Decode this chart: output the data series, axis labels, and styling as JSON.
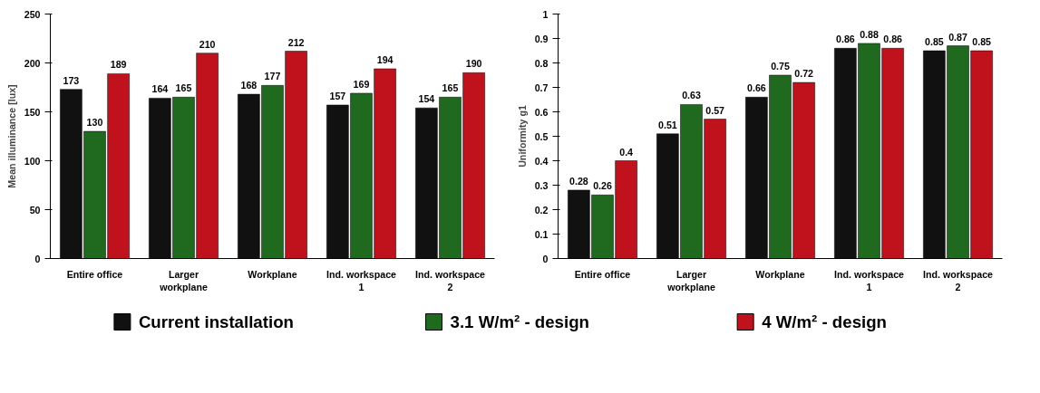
{
  "chart_data": [
    {
      "type": "bar",
      "ylabel": "Mean illuminance [lux]",
      "categories": [
        "Entire office",
        "Larger\nworkplane",
        "Workplane",
        "Ind. workspace\n1",
        "Ind. workspace\n2"
      ],
      "series": [
        {
          "name": "Current installation",
          "color": "#111111",
          "values": [
            173,
            164,
            168,
            157,
            154
          ]
        },
        {
          "name": "3.1 W/m² - design",
          "color": "#1f6a1f",
          "values": [
            130,
            165,
            177,
            169,
            165
          ]
        },
        {
          "name": "4 W/m² - design",
          "color": "#c0121c",
          "values": [
            189,
            210,
            212,
            194,
            190
          ]
        }
      ],
      "ylim": [
        0,
        250
      ],
      "yticks": [
        0,
        50,
        100,
        150,
        200,
        250
      ],
      "data_labels": true,
      "grid": false,
      "legend": "bottom"
    },
    {
      "type": "bar",
      "ylabel": "Uniformity g1",
      "categories": [
        "Entire office",
        "Larger\nworkplane",
        "Workplane",
        "Ind. workspace\n1",
        "Ind. workspace\n2"
      ],
      "series": [
        {
          "color": "#111111",
          "values": [
            0.28,
            0.51,
            0.66,
            0.86,
            0.85
          ]
        },
        {
          "color": "#1f6a1f",
          "values": [
            0.26,
            0.63,
            0.75,
            0.88,
            0.87
          ]
        },
        {
          "color": "#c0121c",
          "values": [
            0.4,
            0.57,
            0.72,
            0.86,
            0.85
          ]
        }
      ],
      "ylim": [
        0,
        1
      ],
      "yticks": [
        0,
        0.1,
        0.2,
        0.3,
        0.4,
        0.5,
        0.6,
        0.7,
        0.8,
        0.9,
        1
      ],
      "data_labels": true,
      "grid": false
    }
  ]
}
